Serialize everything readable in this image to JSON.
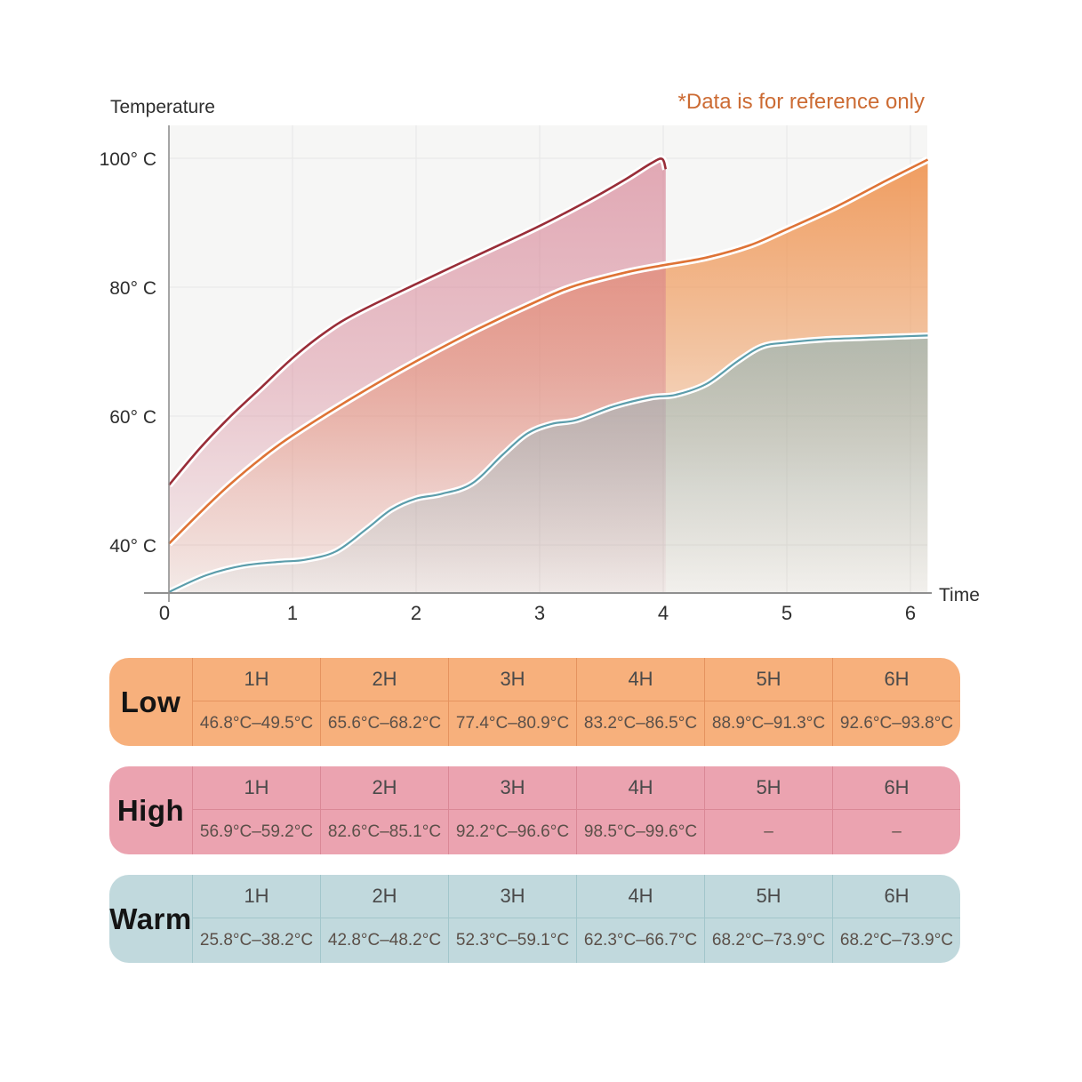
{
  "chart": {
    "y_axis_title": "Temperature",
    "x_axis_title": "Time",
    "note": "*Data is for reference only",
    "note_color": "#cc6b33",
    "plot_bg": "#f6f6f5",
    "y_ticks": [
      "100° C",
      "80° C",
      "60° C",
      "40° C"
    ],
    "x_ticks": [
      "0",
      "1",
      "2",
      "3",
      "4",
      "5",
      "6"
    ]
  },
  "chart_data": {
    "type": "area",
    "title": "",
    "xlabel": "Time",
    "ylabel": "Temperature",
    "x_tick_values": [
      0,
      1,
      2,
      3,
      4,
      5,
      6
    ],
    "y_tick_values": [
      40,
      60,
      80,
      100
    ],
    "xlim": [
      0,
      6.14
    ],
    "ylim_view": [
      32.5,
      105
    ],
    "grid": true,
    "legend_position": "none",
    "series": [
      {
        "id": "low",
        "name": "Low",
        "line_color": "#de7336",
        "fill_color": "#ef9350",
        "points": [
          [
            0,
            40.2
          ],
          [
            0.25,
            45
          ],
          [
            0.5,
            49.5
          ],
          [
            0.75,
            53.5
          ],
          [
            1,
            57
          ],
          [
            1.5,
            63
          ],
          [
            2,
            68.5
          ],
          [
            2.5,
            73.5
          ],
          [
            3,
            78
          ],
          [
            3.3,
            80.3
          ],
          [
            3.7,
            82.3
          ],
          [
            4,
            83.4
          ],
          [
            4.35,
            84.6
          ],
          [
            4.7,
            86.5
          ],
          [
            5,
            89
          ],
          [
            5.4,
            92.5
          ],
          [
            5.8,
            96.5
          ],
          [
            6.14,
            99.8
          ]
        ]
      },
      {
        "id": "high",
        "name": "High",
        "line_color": "#992d38",
        "fill_color": "#d4788c",
        "points": [
          [
            0,
            49.3
          ],
          [
            0.25,
            55
          ],
          [
            0.5,
            60
          ],
          [
            0.75,
            64.5
          ],
          [
            1,
            69
          ],
          [
            1.25,
            72.8
          ],
          [
            1.5,
            75.8
          ],
          [
            2,
            80.5
          ],
          [
            2.5,
            85
          ],
          [
            3,
            89.5
          ],
          [
            3.4,
            93.5
          ],
          [
            3.7,
            96.8
          ],
          [
            3.9,
            99.2
          ],
          [
            3.99,
            99.9
          ],
          [
            4.02,
            98.3
          ]
        ]
      },
      {
        "id": "warm",
        "name": "Warm",
        "line_color": "#5c9dab",
        "fill_color": "#7fb2bc",
        "points": [
          [
            0,
            32.7
          ],
          [
            0.3,
            35.3
          ],
          [
            0.6,
            36.8
          ],
          [
            0.9,
            37.4
          ],
          [
            1.1,
            37.7
          ],
          [
            1.35,
            39
          ],
          [
            1.6,
            42.5
          ],
          [
            1.8,
            45.5
          ],
          [
            2,
            47.2
          ],
          [
            2.2,
            47.9
          ],
          [
            2.45,
            49.5
          ],
          [
            2.7,
            54
          ],
          [
            2.9,
            57.3
          ],
          [
            3.1,
            58.8
          ],
          [
            3.3,
            59.4
          ],
          [
            3.6,
            61.5
          ],
          [
            3.9,
            62.9
          ],
          [
            4.1,
            63.3
          ],
          [
            4.35,
            65
          ],
          [
            4.6,
            68.5
          ],
          [
            4.8,
            70.8
          ],
          [
            5,
            71.4
          ],
          [
            5.3,
            71.9
          ],
          [
            5.7,
            72.2
          ],
          [
            6.14,
            72.5
          ]
        ]
      }
    ]
  },
  "tables": [
    {
      "label": "Low",
      "bg": "#f7b07c",
      "border": "#e5935f",
      "hours": [
        "1H",
        "2H",
        "3H",
        "4H",
        "5H",
        "6H"
      ],
      "values": [
        "46.8°C–49.5°C",
        "65.6°C–68.2°C",
        "77.4°C–80.9°C",
        "83.2°C–86.5°C",
        "88.9°C–91.3°C",
        "92.6°C–93.8°C"
      ]
    },
    {
      "label": "High",
      "bg": "#eba3b0",
      "border": "#da8896",
      "hours": [
        "1H",
        "2H",
        "3H",
        "4H",
        "5H",
        "6H"
      ],
      "values": [
        "56.9°C–59.2°C",
        "82.6°C–85.1°C",
        "92.2°C–96.6°C",
        "98.5°C–99.6°C",
        "–",
        "–"
      ]
    },
    {
      "label": "Warm",
      "bg": "#c1d9dd",
      "border": "#a2c6cb",
      "hours": [
        "1H",
        "2H",
        "3H",
        "4H",
        "5H",
        "6H"
      ],
      "values": [
        "25.8°C–38.2°C",
        "42.8°C–48.2°C",
        "52.3°C–59.1°C",
        "62.3°C–66.7°C",
        "68.2°C–73.9°C",
        "68.2°C–73.9°C"
      ]
    }
  ]
}
